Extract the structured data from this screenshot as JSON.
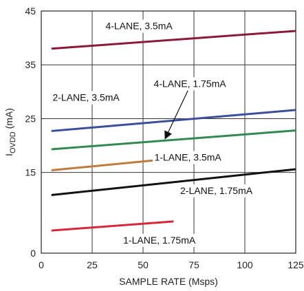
{
  "chart_data": {
    "type": "line",
    "title": "",
    "xlabel": "SAMPLE RATE (Msps)",
    "ylabel": {
      "main": "I",
      "sub": "OVDD",
      "unit": " (mA)"
    },
    "xlim": [
      0,
      125
    ],
    "ylim": [
      0,
      45
    ],
    "xticks": [
      0,
      25,
      50,
      75,
      100,
      125
    ],
    "yticks": [
      0,
      15,
      25,
      35,
      45
    ],
    "ytick_labels": [
      "0",
      "15",
      "25",
      "35",
      "45"
    ],
    "grid": true,
    "legend": "none",
    "series": [
      {
        "name": "4-LANE, 3.5mA",
        "x": [
          5,
          125
        ],
        "y": [
          38.0,
          41.3
        ],
        "color": "#8b1a3a"
      },
      {
        "name": "2-LANE, 3.5mA",
        "x": [
          5,
          125
        ],
        "y": [
          22.7,
          26.6
        ],
        "color": "#3a4f9c"
      },
      {
        "name": "4-LANE, 1.75mA",
        "x": [
          5,
          125
        ],
        "y": [
          19.3,
          22.8
        ],
        "color": "#2e8a4f"
      },
      {
        "name": "1-LANE, 3.5mA",
        "x": [
          5,
          65
        ],
        "y": [
          15.4,
          17.6
        ],
        "color": "#c07a3a"
      },
      {
        "name": "2-LANE, 1.75mA",
        "x": [
          5,
          125
        ],
        "y": [
          10.8,
          15.6
        ],
        "color": "#111111"
      },
      {
        "name": "1-LANE, 1.75mA",
        "x": [
          5,
          65
        ],
        "y": [
          4.2,
          5.9
        ],
        "color": "#d6283a"
      }
    ],
    "annotations": [
      {
        "text": "4-LANE, 3.5mA",
        "x": 48,
        "y": 41.6
      },
      {
        "text": "2-LANE, 3.5mA",
        "x": 22,
        "y": 28.3
      },
      {
        "text": "4-LANE, 1.75mA",
        "x": 73,
        "y": 30.9
      },
      {
        "text": "1-LANE, 3.5mA",
        "x": 72,
        "y": 17.2
      },
      {
        "text": "2-LANE, 1.75mA",
        "x": 86,
        "y": 11.0
      },
      {
        "text": "1-LANE, 1.75mA",
        "x": 58,
        "y": 1.8
      }
    ],
    "arrow": {
      "label": "4-LANE, 1.75mA",
      "from": [
        72,
        30.2
      ],
      "to": [
        61,
        21.4
      ]
    }
  }
}
